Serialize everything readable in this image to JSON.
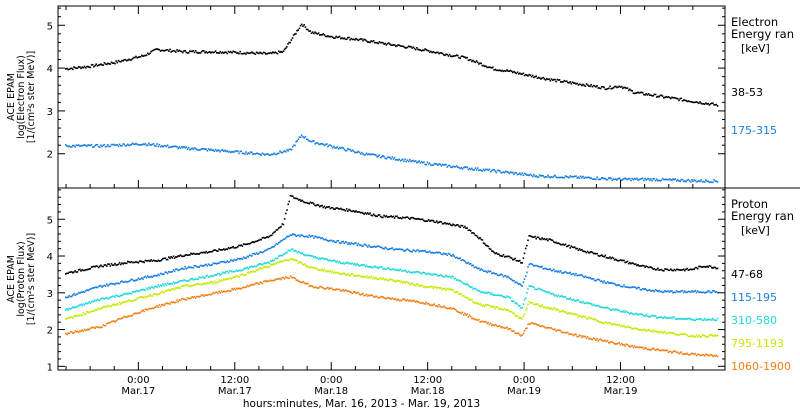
{
  "chart_data": [
    {
      "type": "scatter",
      "panel": "electron",
      "ylabel": [
        "ACE EPAM",
        "log(Electron Flux)",
        "[1/(cm²s ster MeV)]"
      ],
      "ylim": [
        1.2,
        5.45
      ],
      "xlim": [
        -11,
        36.5
      ],
      "yticks": [
        2,
        3,
        4,
        5
      ],
      "legend_title": [
        "Electron",
        "Energy ran",
        "[keV]"
      ],
      "series": [
        {
          "name": "38-53",
          "color": "#000000",
          "points": [
            [
              -10.5,
              4.0
            ],
            [
              -9,
              4.05
            ],
            [
              -7,
              4.15
            ],
            [
              -5,
              4.3
            ],
            [
              -4,
              4.45
            ],
            [
              -2,
              4.4
            ],
            [
              0,
              4.4
            ],
            [
              2,
              4.38
            ],
            [
              4,
              4.35
            ],
            [
              5,
              4.4
            ],
            [
              5.8,
              4.8
            ],
            [
              6.3,
              5.05
            ],
            [
              7,
              4.85
            ],
            [
              8.5,
              4.75
            ],
            [
              10,
              4.7
            ],
            [
              12,
              4.6
            ],
            [
              14,
              4.5
            ],
            [
              16,
              4.38
            ],
            [
              18,
              4.25
            ],
            [
              20,
              4.0
            ],
            [
              21,
              3.95
            ],
            [
              22,
              3.88
            ],
            [
              24,
              3.75
            ],
            [
              26,
              3.65
            ],
            [
              28,
              3.55
            ],
            [
              29,
              3.6
            ],
            [
              30,
              3.45
            ],
            [
              32,
              3.35
            ],
            [
              34,
              3.25
            ],
            [
              36,
              3.15
            ]
          ]
        },
        {
          "name": "175-315",
          "color": "#1a7fe0",
          "points": [
            [
              -10.5,
              2.2
            ],
            [
              -8,
              2.2
            ],
            [
              -5,
              2.25
            ],
            [
              -2,
              2.15
            ],
            [
              0,
              2.1
            ],
            [
              2,
              2.05
            ],
            [
              4,
              2.0
            ],
            [
              5.5,
              2.1
            ],
            [
              6.3,
              2.45
            ],
            [
              7,
              2.3
            ],
            [
              9,
              2.15
            ],
            [
              11,
              2.0
            ],
            [
              13,
              1.9
            ],
            [
              15,
              1.8
            ],
            [
              17,
              1.72
            ],
            [
              19,
              1.65
            ],
            [
              21,
              1.58
            ],
            [
              23,
              1.5
            ],
            [
              25,
              1.48
            ],
            [
              27,
              1.45
            ],
            [
              29,
              1.42
            ],
            [
              31,
              1.42
            ],
            [
              33,
              1.4
            ],
            [
              35,
              1.38
            ],
            [
              36,
              1.38
            ]
          ]
        }
      ]
    },
    {
      "type": "scatter",
      "panel": "proton",
      "ylabel": [
        "ACE EPAM",
        "log(Proton Flux)",
        "[1/(cm²s ster MeV)]"
      ],
      "ylim": [
        0.9,
        5.85
      ],
      "xlim": [
        -11,
        36.5
      ],
      "yticks": [
        1,
        2,
        3,
        4,
        5
      ],
      "legend_title": [
        "Proton",
        "Energy ran",
        "[keV]"
      ],
      "series": [
        {
          "name": "47-68",
          "color": "#000000",
          "points": [
            [
              -10.5,
              3.55
            ],
            [
              -8,
              3.75
            ],
            [
              -6,
              3.85
            ],
            [
              -4,
              3.9
            ],
            [
              -2,
              4.05
            ],
            [
              0,
              4.15
            ],
            [
              2,
              4.3
            ],
            [
              4,
              4.55
            ],
            [
              5,
              4.9
            ],
            [
              5.5,
              5.65
            ],
            [
              6.5,
              5.5
            ],
            [
              8,
              5.35
            ],
            [
              10,
              5.25
            ],
            [
              12,
              5.1
            ],
            [
              14,
              5.05
            ],
            [
              16,
              4.95
            ],
            [
              18,
              4.8
            ],
            [
              19,
              4.5
            ],
            [
              20,
              4.1
            ],
            [
              21,
              4.0
            ],
            [
              22,
              3.85
            ],
            [
              22.5,
              4.55
            ],
            [
              24,
              4.45
            ],
            [
              26,
              4.2
            ],
            [
              28,
              4.0
            ],
            [
              30,
              3.8
            ],
            [
              31,
              3.7
            ],
            [
              32,
              3.65
            ],
            [
              34,
              3.65
            ],
            [
              35,
              3.75
            ],
            [
              36,
              3.7
            ]
          ]
        },
        {
          "name": "115-195",
          "color": "#1a7fe0",
          "points": [
            [
              -10.5,
              2.9
            ],
            [
              -8,
              3.2
            ],
            [
              -6,
              3.35
            ],
            [
              -4,
              3.5
            ],
            [
              -2,
              3.7
            ],
            [
              0,
              3.8
            ],
            [
              2,
              3.95
            ],
            [
              4,
              4.2
            ],
            [
              5.5,
              4.6
            ],
            [
              7,
              4.55
            ],
            [
              9,
              4.4
            ],
            [
              11,
              4.3
            ],
            [
              13,
              4.2
            ],
            [
              15,
              4.15
            ],
            [
              17,
              4.05
            ],
            [
              19,
              3.65
            ],
            [
              21,
              3.45
            ],
            [
              22,
              3.2
            ],
            [
              22.5,
              3.8
            ],
            [
              24,
              3.65
            ],
            [
              26,
              3.5
            ],
            [
              28,
              3.3
            ],
            [
              30,
              3.15
            ],
            [
              32,
              3.05
            ],
            [
              34,
              3.05
            ],
            [
              36,
              3.05
            ]
          ]
        },
        {
          "name": "310-580",
          "color": "#20d8d8",
          "points": [
            [
              -10.5,
              2.55
            ],
            [
              -8,
              2.85
            ],
            [
              -6,
              3.0
            ],
            [
              -4,
              3.2
            ],
            [
              -2,
              3.35
            ],
            [
              0,
              3.5
            ],
            [
              2,
              3.65
            ],
            [
              4,
              3.85
            ],
            [
              5.5,
              4.2
            ],
            [
              7,
              4.0
            ],
            [
              9,
              3.85
            ],
            [
              11,
              3.75
            ],
            [
              13,
              3.65
            ],
            [
              15,
              3.55
            ],
            [
              17,
              3.45
            ],
            [
              19,
              3.05
            ],
            [
              21,
              2.9
            ],
            [
              22,
              2.6
            ],
            [
              22.5,
              3.2
            ],
            [
              24,
              3.0
            ],
            [
              26,
              2.8
            ],
            [
              28,
              2.6
            ],
            [
              30,
              2.45
            ],
            [
              32,
              2.35
            ],
            [
              34,
              2.3
            ],
            [
              36,
              2.3
            ]
          ]
        },
        {
          "name": "795-1193",
          "color": "#c8e800",
          "points": [
            [
              -10.5,
              2.3
            ],
            [
              -8,
              2.6
            ],
            [
              -6,
              2.8
            ],
            [
              -4,
              3.0
            ],
            [
              -2,
              3.2
            ],
            [
              0,
              3.3
            ],
            [
              2,
              3.5
            ],
            [
              4,
              3.75
            ],
            [
              5.5,
              3.95
            ],
            [
              7,
              3.7
            ],
            [
              9,
              3.55
            ],
            [
              11,
              3.45
            ],
            [
              13,
              3.35
            ],
            [
              15,
              3.2
            ],
            [
              17,
              3.1
            ],
            [
              19,
              2.7
            ],
            [
              21,
              2.55
            ],
            [
              22,
              2.3
            ],
            [
              22.5,
              2.75
            ],
            [
              24,
              2.6
            ],
            [
              26,
              2.4
            ],
            [
              28,
              2.2
            ],
            [
              30,
              2.05
            ],
            [
              32,
              1.95
            ],
            [
              34,
              1.85
            ],
            [
              36,
              1.85
            ]
          ]
        },
        {
          "name": "1060-1900",
          "color": "#f08018",
          "points": [
            [
              -10.5,
              1.9
            ],
            [
              -8,
              2.1
            ],
            [
              -6,
              2.4
            ],
            [
              -4,
              2.65
            ],
            [
              -2,
              2.85
            ],
            [
              0,
              3.0
            ],
            [
              2,
              3.15
            ],
            [
              4,
              3.35
            ],
            [
              5.5,
              3.45
            ],
            [
              7,
              3.2
            ],
            [
              9,
              3.1
            ],
            [
              11,
              2.95
            ],
            [
              13,
              2.85
            ],
            [
              15,
              2.75
            ],
            [
              17,
              2.6
            ],
            [
              19,
              2.25
            ],
            [
              21,
              2.05
            ],
            [
              22,
              1.85
            ],
            [
              22.5,
              2.2
            ],
            [
              24,
              2.05
            ],
            [
              26,
              1.85
            ],
            [
              28,
              1.7
            ],
            [
              30,
              1.55
            ],
            [
              32,
              1.45
            ],
            [
              34,
              1.35
            ],
            [
              36,
              1.3
            ]
          ]
        }
      ]
    }
  ],
  "x_ticks": [
    {
      "x": 0,
      "time": "0:00",
      "date": "Mar.17"
    },
    {
      "x": 12,
      "time": "12:00",
      "date": "Mar.17"
    },
    {
      "x": 24,
      "time": "0:00",
      "date": "Mar.18"
    },
    {
      "x": 36,
      "time": "12:00",
      "date": "Mar.18"
    },
    {
      "x": 48,
      "time": "0:00",
      "date": "Mar.19"
    },
    {
      "x": 60,
      "time": "12:00",
      "date": "Mar.19"
    }
  ],
  "xlabel": "hours:minutes, Mar. 16, 2013 - Mar. 19, 2013",
  "xrange_hours": [
    -10,
    73
  ]
}
